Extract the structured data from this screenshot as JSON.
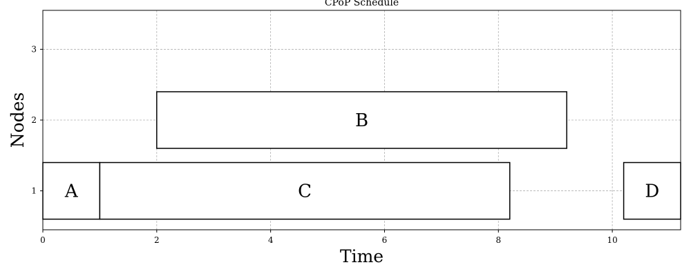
{
  "chart_data": {
    "type": "gantt",
    "title": "CPoP Schedule",
    "xlabel": "Time",
    "ylabel": "Nodes",
    "xlim": [
      0,
      11.2
    ],
    "ylim": [
      0.45,
      3.55
    ],
    "xticks": [
      0,
      2,
      4,
      6,
      8,
      10
    ],
    "yticks": [
      1,
      2,
      3
    ],
    "grid": true,
    "tasks": [
      {
        "label": "A",
        "node": 1,
        "start": 0,
        "end": 1.0
      },
      {
        "label": "C",
        "node": 1,
        "start": 1.0,
        "end": 8.2
      },
      {
        "label": "B",
        "node": 2,
        "start": 2.0,
        "end": 9.2
      },
      {
        "label": "D",
        "node": 1,
        "start": 10.2,
        "end": 11.2
      }
    ]
  }
}
